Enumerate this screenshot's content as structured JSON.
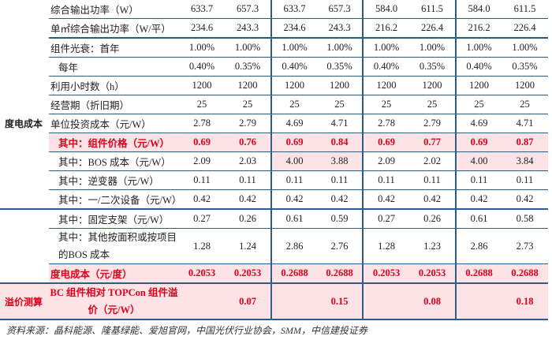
{
  "category_lcoe": "度电成本",
  "category_premium": "溢价测算",
  "colors": {
    "line": "#2b5d8c",
    "highlight": "#fde3e5",
    "emphasis": "#e0001b"
  },
  "rows": [
    {
      "label": "综合输出功率（W）",
      "values": [
        "633.7",
        "657.3",
        "633.7",
        "657.3",
        "584.0",
        "611.5",
        "584.0",
        "611.5"
      ]
    },
    {
      "label": "单㎡综合输出功率（W/平）",
      "values": [
        "234.6",
        "243.3",
        "234.6",
        "243.3",
        "216.2",
        "226.4",
        "216.2",
        "226.4"
      ]
    },
    {
      "label": "组件光衰：首年",
      "values": [
        "1.00%",
        "1.00%",
        "1.00%",
        "1.00%",
        "1.00%",
        "1.00%",
        "1.00%",
        "1.00%"
      ]
    },
    {
      "label": "每年",
      "values": [
        "0.40%",
        "0.35%",
        "0.40%",
        "0.35%",
        "0.40%",
        "0.35%",
        "0.40%",
        "0.35%"
      ]
    },
    {
      "label": "利用小时数（h）",
      "values": [
        "1200",
        "1200",
        "1200",
        "1200",
        "1200",
        "1200",
        "1200",
        "1200"
      ]
    },
    {
      "label": "经营期（折旧期）",
      "values": [
        "25",
        "25",
        "25",
        "25",
        "25",
        "25",
        "25",
        "25"
      ]
    },
    {
      "label": "单位投资成本（元/W）",
      "values": [
        "2.78",
        "2.79",
        "4.69",
        "4.71",
        "2.78",
        "2.79",
        "4.69",
        "4.71"
      ]
    },
    {
      "label": "其中：组件价格（元/W）",
      "values": [
        "0.69",
        "0.76",
        "0.69",
        "0.84",
        "0.69",
        "0.77",
        "0.69",
        "0.87"
      ],
      "emphasis": true
    },
    {
      "label": "其中：BOS 成本（元/W）",
      "values": [
        "2.09",
        "2.03",
        "4.00",
        "3.88",
        "2.09",
        "2.02",
        "4.00",
        "3.84"
      ],
      "highlighted_columns": [
        2,
        3,
        6,
        7
      ]
    },
    {
      "label": "其中：逆变器（元/W）",
      "values": [
        "0.11",
        "0.11",
        "0.11",
        "0.11",
        "0.11",
        "0.11",
        "0.11",
        "0.11"
      ]
    },
    {
      "label": "其中：一/二次设备（元/W）",
      "values": [
        "0.42",
        "0.42",
        "0.42",
        "0.42",
        "0.42",
        "0.42",
        "0.42",
        "0.42"
      ]
    },
    {
      "label": "其中：固定支架（元/W）",
      "values": [
        "0.27",
        "0.26",
        "0.61",
        "0.59",
        "0.27",
        "0.26",
        "0.61",
        "0.58"
      ]
    },
    {
      "label": "其中：其他按面积或按项目的BOS 成本",
      "values": [
        "1.28",
        "1.24",
        "2.86",
        "2.76",
        "1.28",
        "1.23",
        "2.86",
        "2.73"
      ]
    },
    {
      "label": "度电成本（元/度）",
      "values": [
        "0.2053",
        "0.2053",
        "0.2688",
        "0.2688",
        "0.2053",
        "0.2053",
        "0.2688",
        "0.2688"
      ],
      "emphasis": true
    },
    {
      "label": "BC 组件相对 TOPCon 组件溢价（元/W）",
      "values": [
        "",
        "0.07",
        "",
        "0.15",
        "",
        "0.08",
        "",
        "0.18"
      ],
      "emphasis": true
    }
  ],
  "source_note": "资料来源：晶科能源、隆基绿能、爱旭官网，中国光伏行业协会，SMM，中信建投证券"
}
